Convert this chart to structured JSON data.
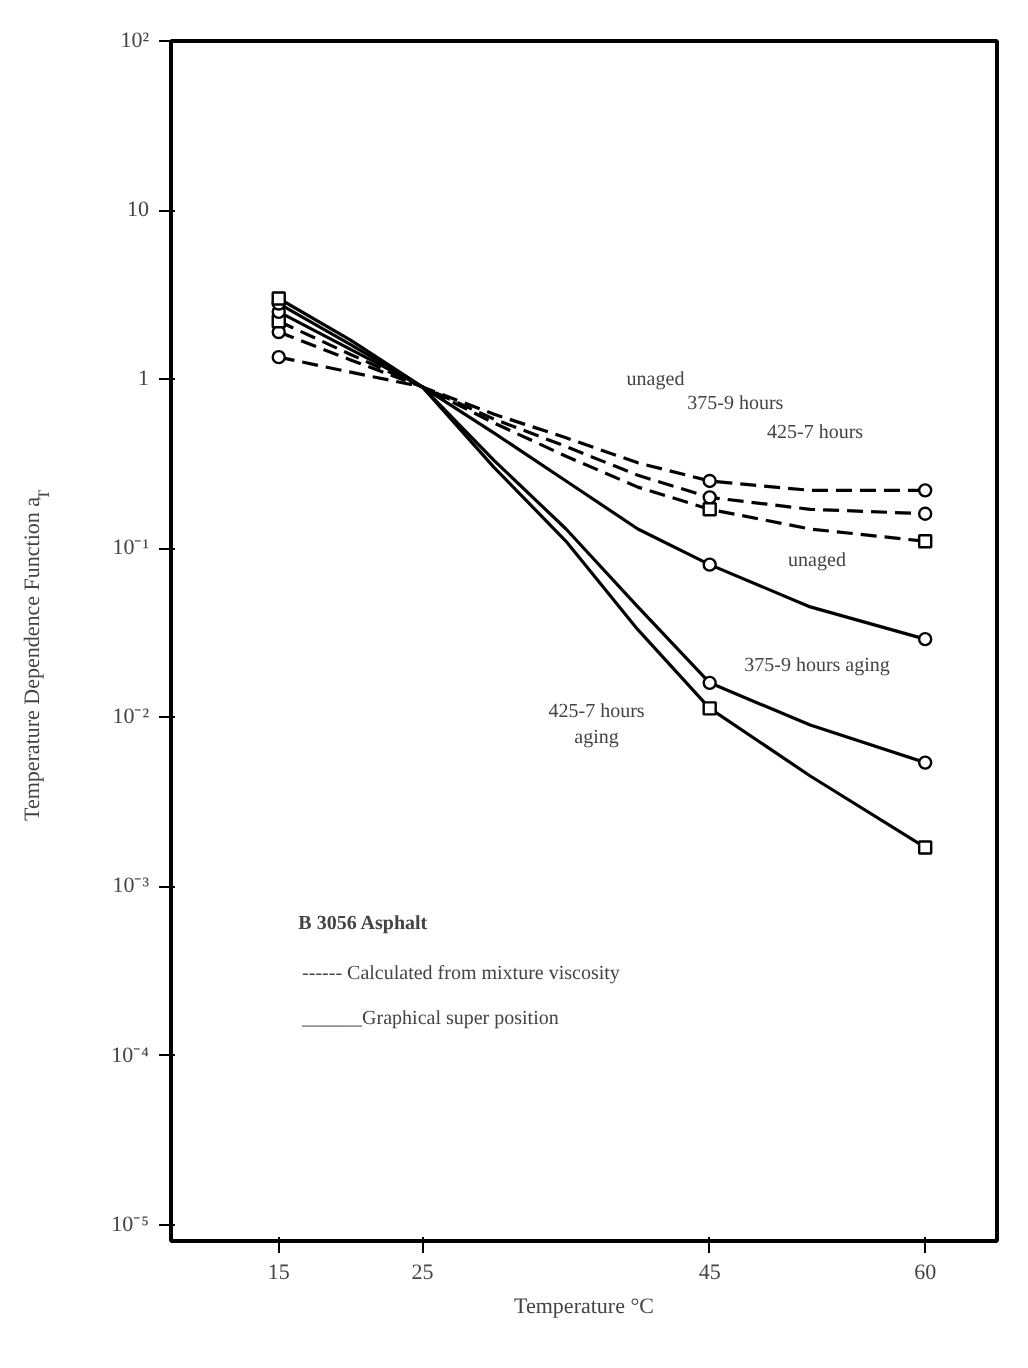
{
  "chart_data": {
    "type": "line",
    "xlabel": "Temperature °C",
    "ylabel": "Temperature Dependence Function a$_{T}$",
    "x": [
      15,
      20,
      25,
      30,
      35,
      40,
      45,
      52,
      60
    ],
    "series": [
      {
        "color": "#000000",
        "line_style": "dashed",
        "values": [
          1.35,
          1.1,
          0.9,
          0.62,
          0.45,
          0.32,
          0.25,
          0.22,
          0.22
        ]
      },
      {
        "color": "#000000",
        "line_style": "dashed",
        "values": [
          1.9,
          1.3,
          0.9,
          0.58,
          0.4,
          0.27,
          0.2,
          0.17,
          0.16
        ]
      },
      {
        "color": "#000000",
        "line_style": "dashed",
        "values": [
          2.2,
          1.4,
          0.9,
          0.55,
          0.35,
          0.23,
          0.17,
          0.13,
          0.11
        ]
      },
      {
        "color": "#000000",
        "line_style": "solid",
        "values": [
          2.5,
          1.5,
          0.9,
          0.48,
          0.25,
          0.13,
          0.08,
          0.045,
          0.029
        ]
      },
      {
        "color": "#000000",
        "line_style": "solid",
        "values": [
          2.8,
          1.6,
          0.9,
          0.33,
          0.13,
          0.045,
          0.016,
          0.009,
          0.0054
        ]
      },
      {
        "color": "#000000",
        "line_style": "solid",
        "values": [
          3.0,
          1.7,
          0.9,
          0.3,
          0.11,
          0.033,
          0.0113,
          0.0045,
          0.0017
        ]
      },
      {
        "type": "scatter",
        "color": "#000000",
        "marker": "circle",
        "x": [
          15,
          45,
          60
        ],
        "values": [
          1.35,
          0.25,
          0.22
        ]
      },
      {
        "type": "scatter",
        "color": "#000000",
        "marker": "circle",
        "x": [
          15,
          45,
          60
        ],
        "values": [
          1.9,
          0.2,
          0.16
        ]
      },
      {
        "type": "scatter",
        "color": "#000000",
        "marker": "square",
        "x": [
          15,
          45,
          60
        ],
        "values": [
          2.2,
          0.17,
          0.11
        ]
      },
      {
        "type": "scatter",
        "color": "#000000",
        "marker": "circle",
        "x": [
          15,
          45,
          60
        ],
        "values": [
          2.5,
          0.08,
          0.029
        ]
      },
      {
        "type": "scatter",
        "color": "#000000",
        "marker": "circle",
        "x": [
          15,
          45,
          60
        ],
        "values": [
          2.8,
          0.016,
          0.0054
        ]
      },
      {
        "type": "scatter",
        "color": "#000000",
        "marker": "square",
        "x": [
          15,
          45,
          60
        ],
        "values": [
          3.0,
          0.0113,
          0.0017
        ]
      }
    ],
    "log": "y",
    "xlim": [
      7.5,
      65
    ],
    "ylim": [
      8e-06,
      100
    ],
    "xticks": [
      15,
      25,
      45,
      60
    ],
    "yticks": [
      {
        "value": 100,
        "label": "10²"
      },
      10,
      1,
      {
        "value": 0.1,
        "label": "10⁻¹"
      },
      {
        "value": 0.01,
        "label": "10⁻²"
      },
      {
        "value": 0.001,
        "label": "10⁻³"
      },
      {
        "value": 0.0001,
        "label": "10⁻⁴"
      },
      {
        "value": 1e-05,
        "label": "10⁻⁵"
      }
    ],
    "grid": false,
    "annotations": [
      "unaged",
      "375-9 hours",
      "425-7 hours",
      "unaged",
      "375-9 hours aging",
      "425-7 hours\naging",
      "B 3056 Asphalt",
      "------ Calculated from mixture viscosity",
      "______Graphical super position"
    ]
  }
}
